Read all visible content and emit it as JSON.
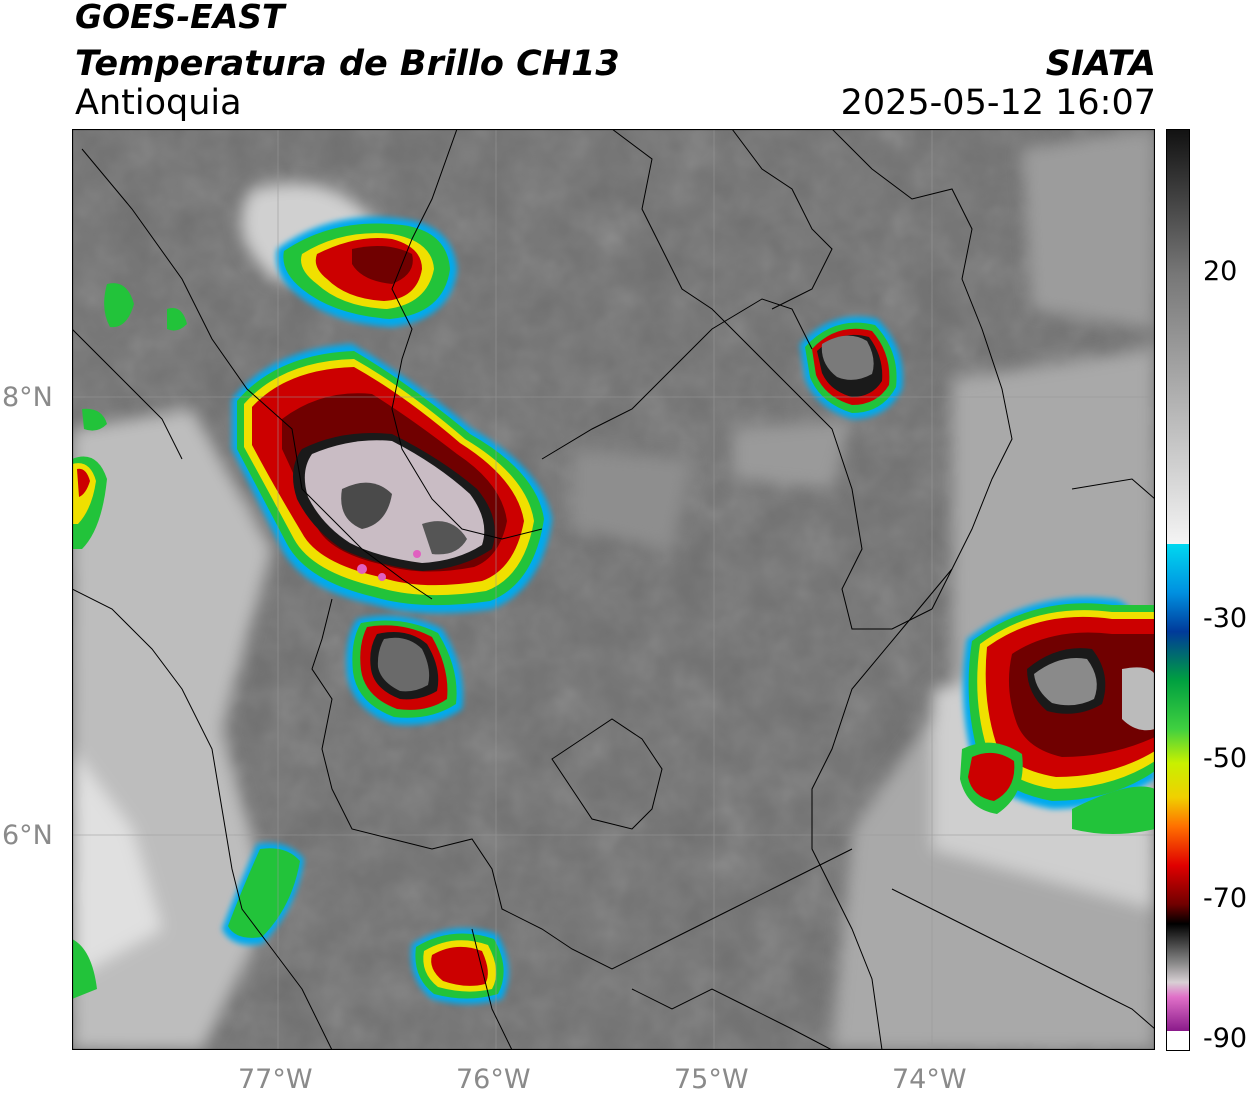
{
  "header": {
    "satellite": "GOES-EAST",
    "product": "Temperatura de Brillo CH13",
    "region": "Antioquia",
    "agency": "SIATA",
    "datetime": "2025-05-12 16:07"
  },
  "map": {
    "lon_labels": [
      "77°W",
      "76°W",
      "75°W",
      "74°W"
    ],
    "lat_labels": [
      "8°N",
      "6°N"
    ],
    "colors": {
      "background_gray": "#6e6e6e",
      "cold_cloud_white": "#e8e8e8",
      "core_mauve": "#c9bcc4",
      "red": "#cc0000",
      "dark_red": "#700000",
      "green": "#22c33a",
      "blue": "#0077dd",
      "cyan": "#00c8ee",
      "magenta": "#e060c0"
    }
  },
  "colorbar": {
    "labels": [
      "20",
      "-30",
      "-50",
      "-70",
      "-90"
    ]
  }
}
